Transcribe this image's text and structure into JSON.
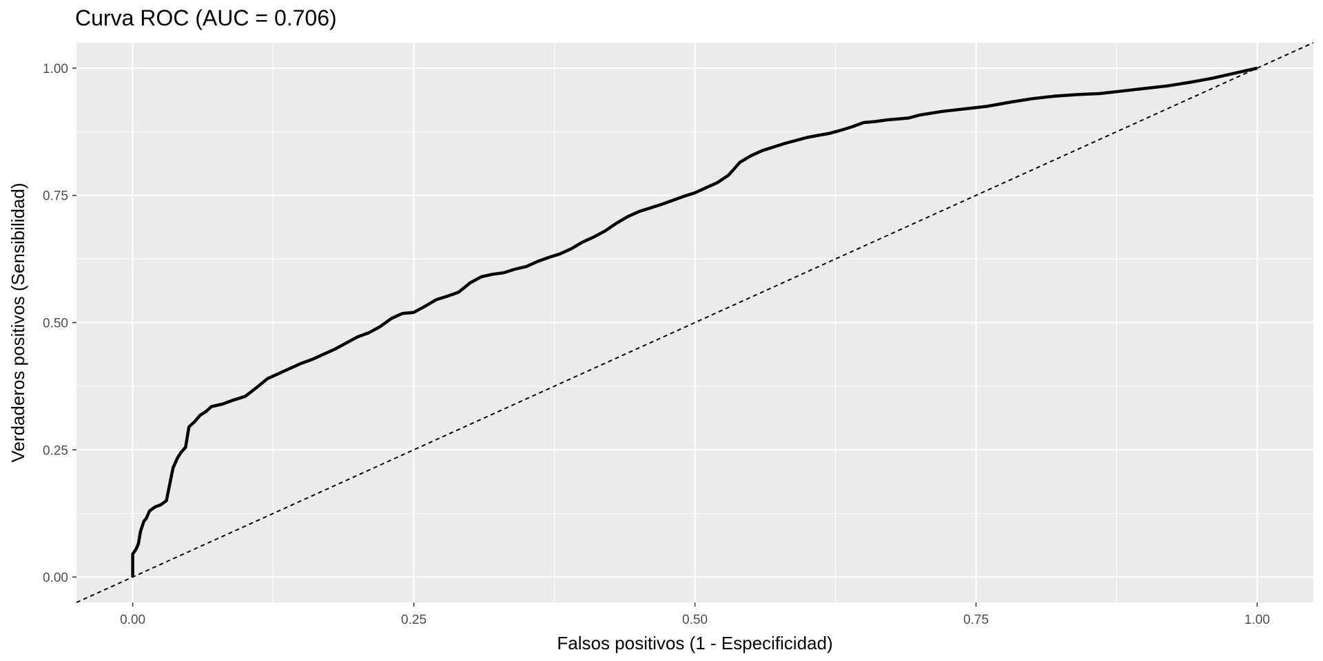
{
  "chart_data": {
    "type": "line",
    "title": "Curva ROC (AUC = 0.706)",
    "xlabel": "Falsos positivos (1 - Especificidad)",
    "ylabel": "Verdaderos positivos (Sensibilidad)",
    "xlim": [
      -0.05,
      1.05
    ],
    "ylim": [
      -0.05,
      1.05
    ],
    "x_ticks": [
      "0.00",
      "0.25",
      "0.50",
      "0.75",
      "1.00"
    ],
    "y_ticks": [
      "0.00",
      "0.25",
      "0.50",
      "0.75",
      "1.00"
    ],
    "grid": true,
    "legend": "none",
    "colors": {
      "panel": "#ebebeb",
      "grid": "#ffffff",
      "curve": "#000000",
      "diagonal": "#000000",
      "tick_text": "#4d4d4d"
    },
    "series": [
      {
        "style": "solid",
        "x": [
          0.0,
          0.0,
          0.003,
          0.005,
          0.007,
          0.01,
          0.012,
          0.015,
          0.02,
          0.025,
          0.03,
          0.035,
          0.036,
          0.04,
          0.043,
          0.047,
          0.05,
          0.055,
          0.06,
          0.065,
          0.07,
          0.08,
          0.09,
          0.1,
          0.11,
          0.12,
          0.13,
          0.14,
          0.15,
          0.16,
          0.17,
          0.18,
          0.19,
          0.2,
          0.21,
          0.22,
          0.23,
          0.24,
          0.25,
          0.26,
          0.27,
          0.28,
          0.29,
          0.3,
          0.31,
          0.32,
          0.33,
          0.34,
          0.35,
          0.36,
          0.37,
          0.38,
          0.39,
          0.4,
          0.41,
          0.42,
          0.43,
          0.44,
          0.45,
          0.46,
          0.47,
          0.48,
          0.49,
          0.5,
          0.51,
          0.52,
          0.53,
          0.54,
          0.55,
          0.56,
          0.57,
          0.58,
          0.59,
          0.6,
          0.61,
          0.62,
          0.63,
          0.64,
          0.65,
          0.66,
          0.67,
          0.68,
          0.69,
          0.7,
          0.72,
          0.74,
          0.76,
          0.78,
          0.8,
          0.82,
          0.84,
          0.86,
          0.88,
          0.9,
          0.92,
          0.94,
          0.96,
          0.98,
          1.0
        ],
        "y": [
          0.0,
          0.045,
          0.055,
          0.065,
          0.09,
          0.11,
          0.115,
          0.13,
          0.138,
          0.142,
          0.15,
          0.205,
          0.215,
          0.235,
          0.245,
          0.255,
          0.295,
          0.305,
          0.318,
          0.325,
          0.335,
          0.34,
          0.348,
          0.355,
          0.372,
          0.39,
          0.4,
          0.41,
          0.42,
          0.428,
          0.438,
          0.448,
          0.46,
          0.472,
          0.48,
          0.492,
          0.508,
          0.518,
          0.52,
          0.532,
          0.545,
          0.552,
          0.56,
          0.578,
          0.59,
          0.595,
          0.598,
          0.605,
          0.61,
          0.62,
          0.628,
          0.635,
          0.645,
          0.658,
          0.668,
          0.68,
          0.695,
          0.708,
          0.718,
          0.725,
          0.732,
          0.74,
          0.748,
          0.755,
          0.765,
          0.775,
          0.79,
          0.815,
          0.828,
          0.838,
          0.845,
          0.852,
          0.858,
          0.864,
          0.868,
          0.872,
          0.878,
          0.885,
          0.893,
          0.895,
          0.898,
          0.9,
          0.902,
          0.908,
          0.915,
          0.92,
          0.925,
          0.933,
          0.94,
          0.945,
          0.948,
          0.95,
          0.955,
          0.96,
          0.965,
          0.972,
          0.98,
          0.99,
          1.0
        ]
      },
      {
        "style": "dashed",
        "x": [
          -0.05,
          1.05
        ],
        "y": [
          -0.05,
          1.05
        ]
      }
    ]
  }
}
